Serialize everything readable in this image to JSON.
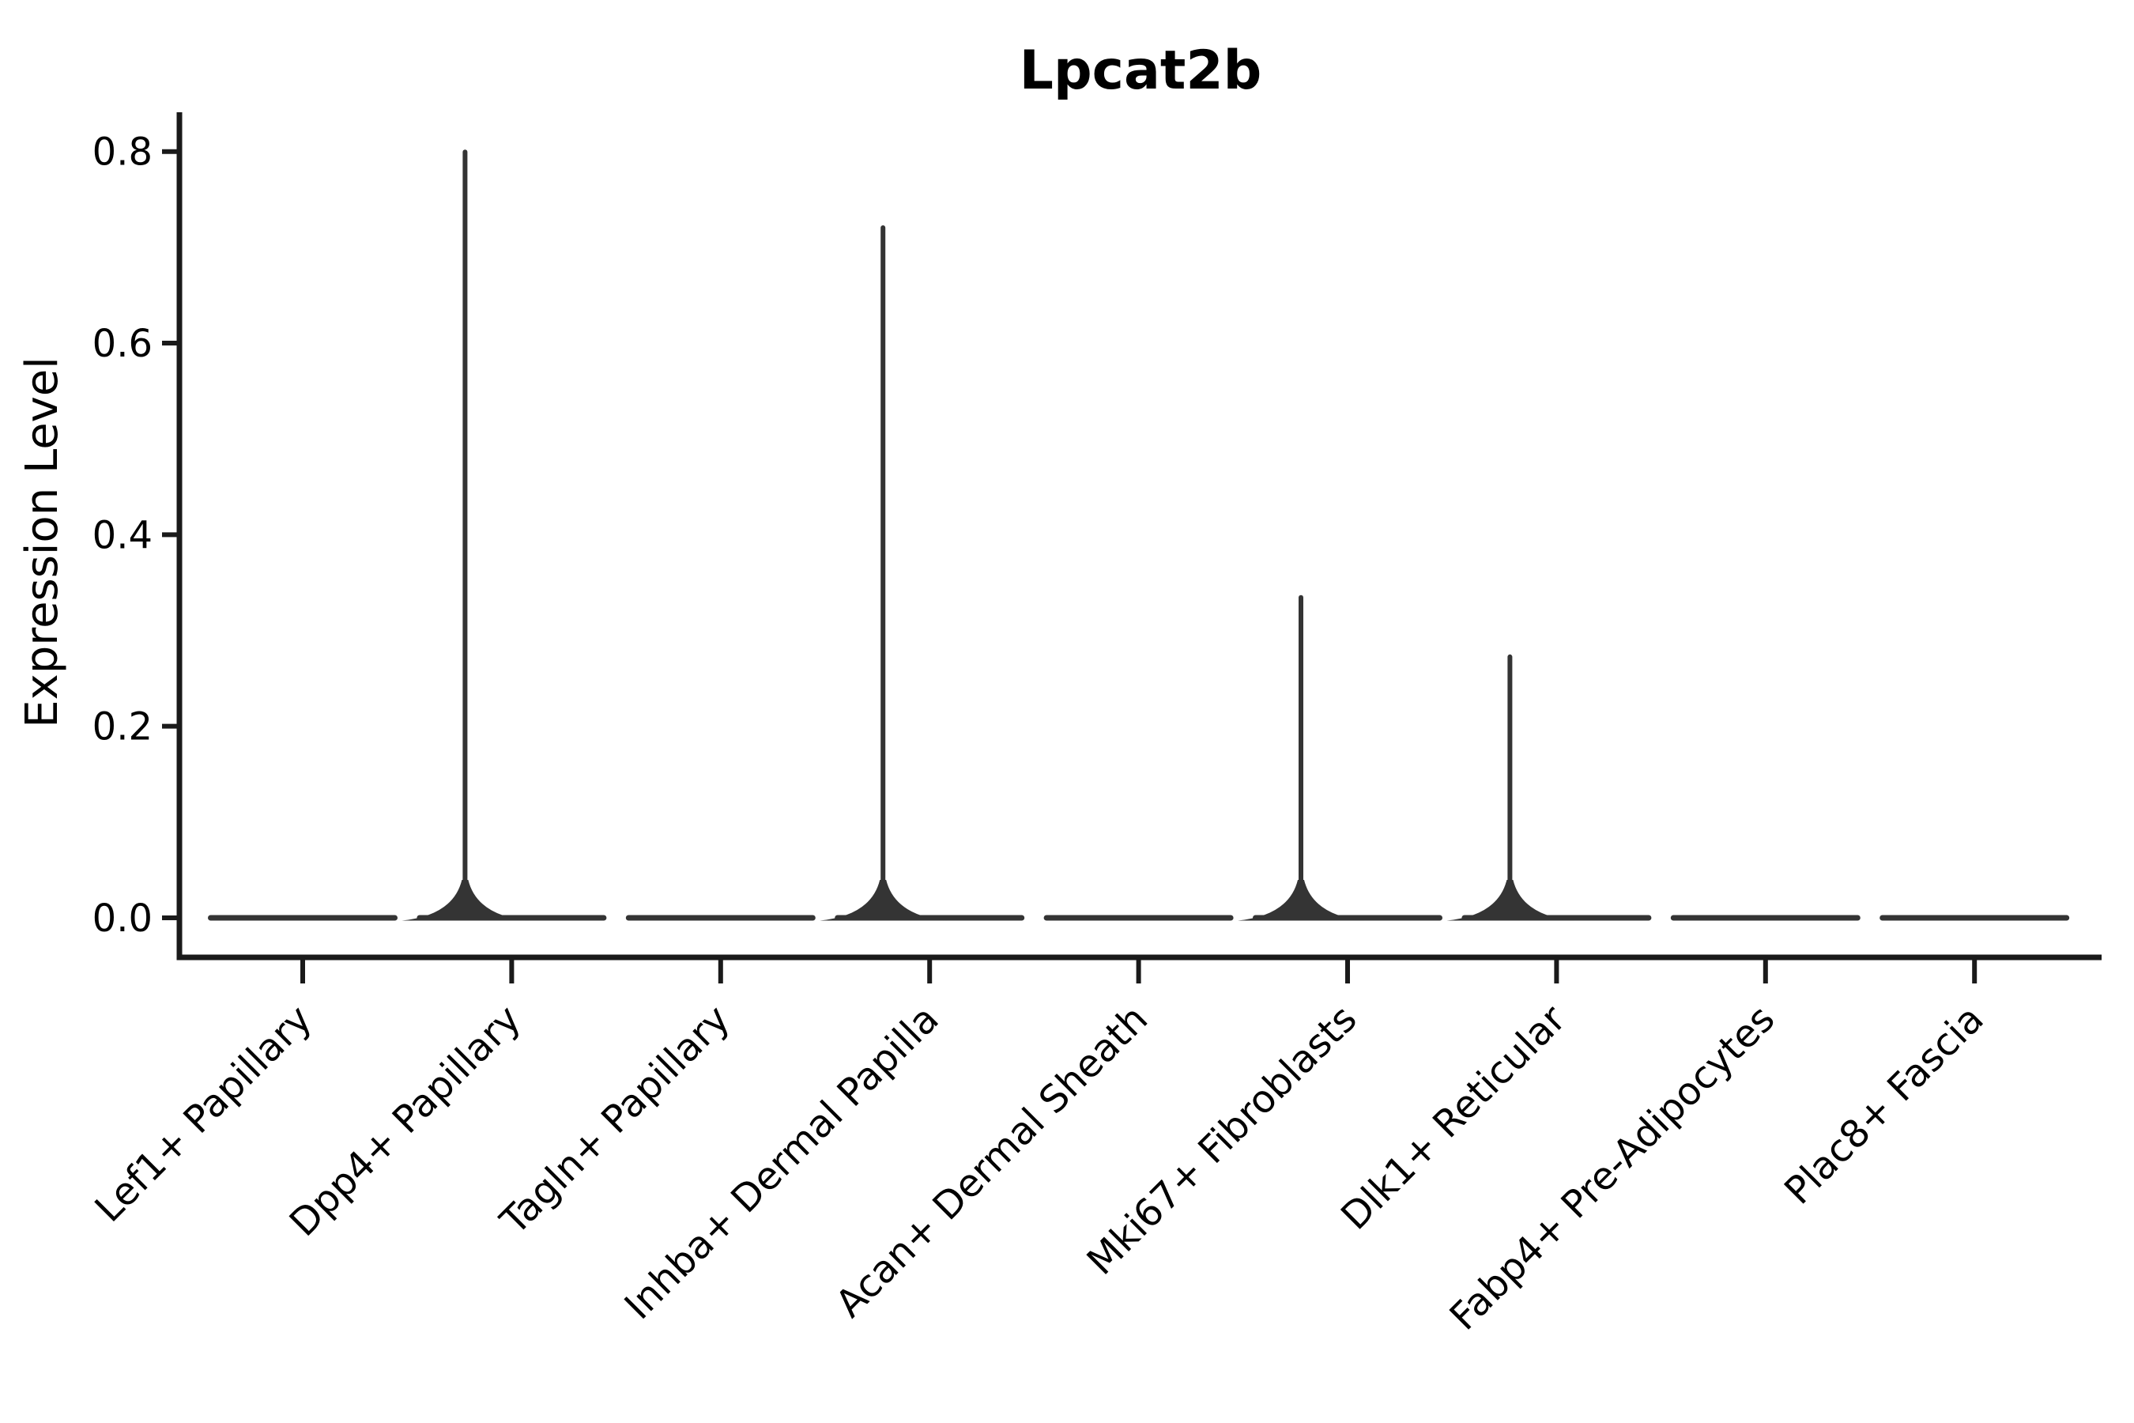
{
  "chart_data": {
    "type": "violin",
    "title": "Lpcat2b",
    "xlabel": "",
    "ylabel": "Expression Level",
    "yticks": [
      0.0,
      0.2,
      0.4,
      0.6,
      0.8
    ],
    "ytick_labels": [
      "0.0",
      "0.2",
      "0.4",
      "0.6",
      "0.8"
    ],
    "ylim": [
      -0.04,
      0.84
    ],
    "grid": false,
    "legend": null,
    "categories": [
      "Lef1+ Papillary",
      "Dpp4+ Papillary",
      "Tagln+ Papillary",
      "Inhba+ Dermal Papilla",
      "Acan+ Dermal Sheath",
      "Mki67+ Fibroblasts",
      "Dlk1+ Reticular",
      "Fabp4+ Pre-Adipocytes",
      "Plac8+ Fascia"
    ],
    "series": [
      {
        "name": "Lef1+ Papillary",
        "bulk_at": 0.0,
        "peak": 0.0
      },
      {
        "name": "Dpp4+ Papillary",
        "bulk_at": 0.0,
        "peak": 0.802
      },
      {
        "name": "Tagln+ Papillary",
        "bulk_at": 0.0,
        "peak": 0.0
      },
      {
        "name": "Inhba+ Dermal Papilla",
        "bulk_at": 0.0,
        "peak": 0.723
      },
      {
        "name": "Acan+ Dermal Sheath",
        "bulk_at": 0.0,
        "peak": 0.0
      },
      {
        "name": "Mki67+ Fibroblasts",
        "bulk_at": 0.0,
        "peak": 0.337
      },
      {
        "name": "Dlk1+ Reticular",
        "bulk_at": 0.0,
        "peak": 0.275
      },
      {
        "name": "Fabp4+ Pre-Adipocytes",
        "bulk_at": 0.0,
        "peak": 0.0
      },
      {
        "name": "Plac8+ Fascia",
        "bulk_at": 0.0,
        "peak": 0.0
      }
    ],
    "values": [
      0.0,
      0.802,
      0.0,
      0.723,
      0.0,
      0.337,
      0.275,
      0.0,
      0.0
    ],
    "note_visible": "all distributions concentrated at 0 (flat violins); thin upper tails only for Dpp4+, Inhba+, Mki67+, Dlk1+",
    "colors": {
      "text": "#000000",
      "spine": "#1a1a1a",
      "violin": "#343434",
      "background": "#ffffff"
    }
  }
}
